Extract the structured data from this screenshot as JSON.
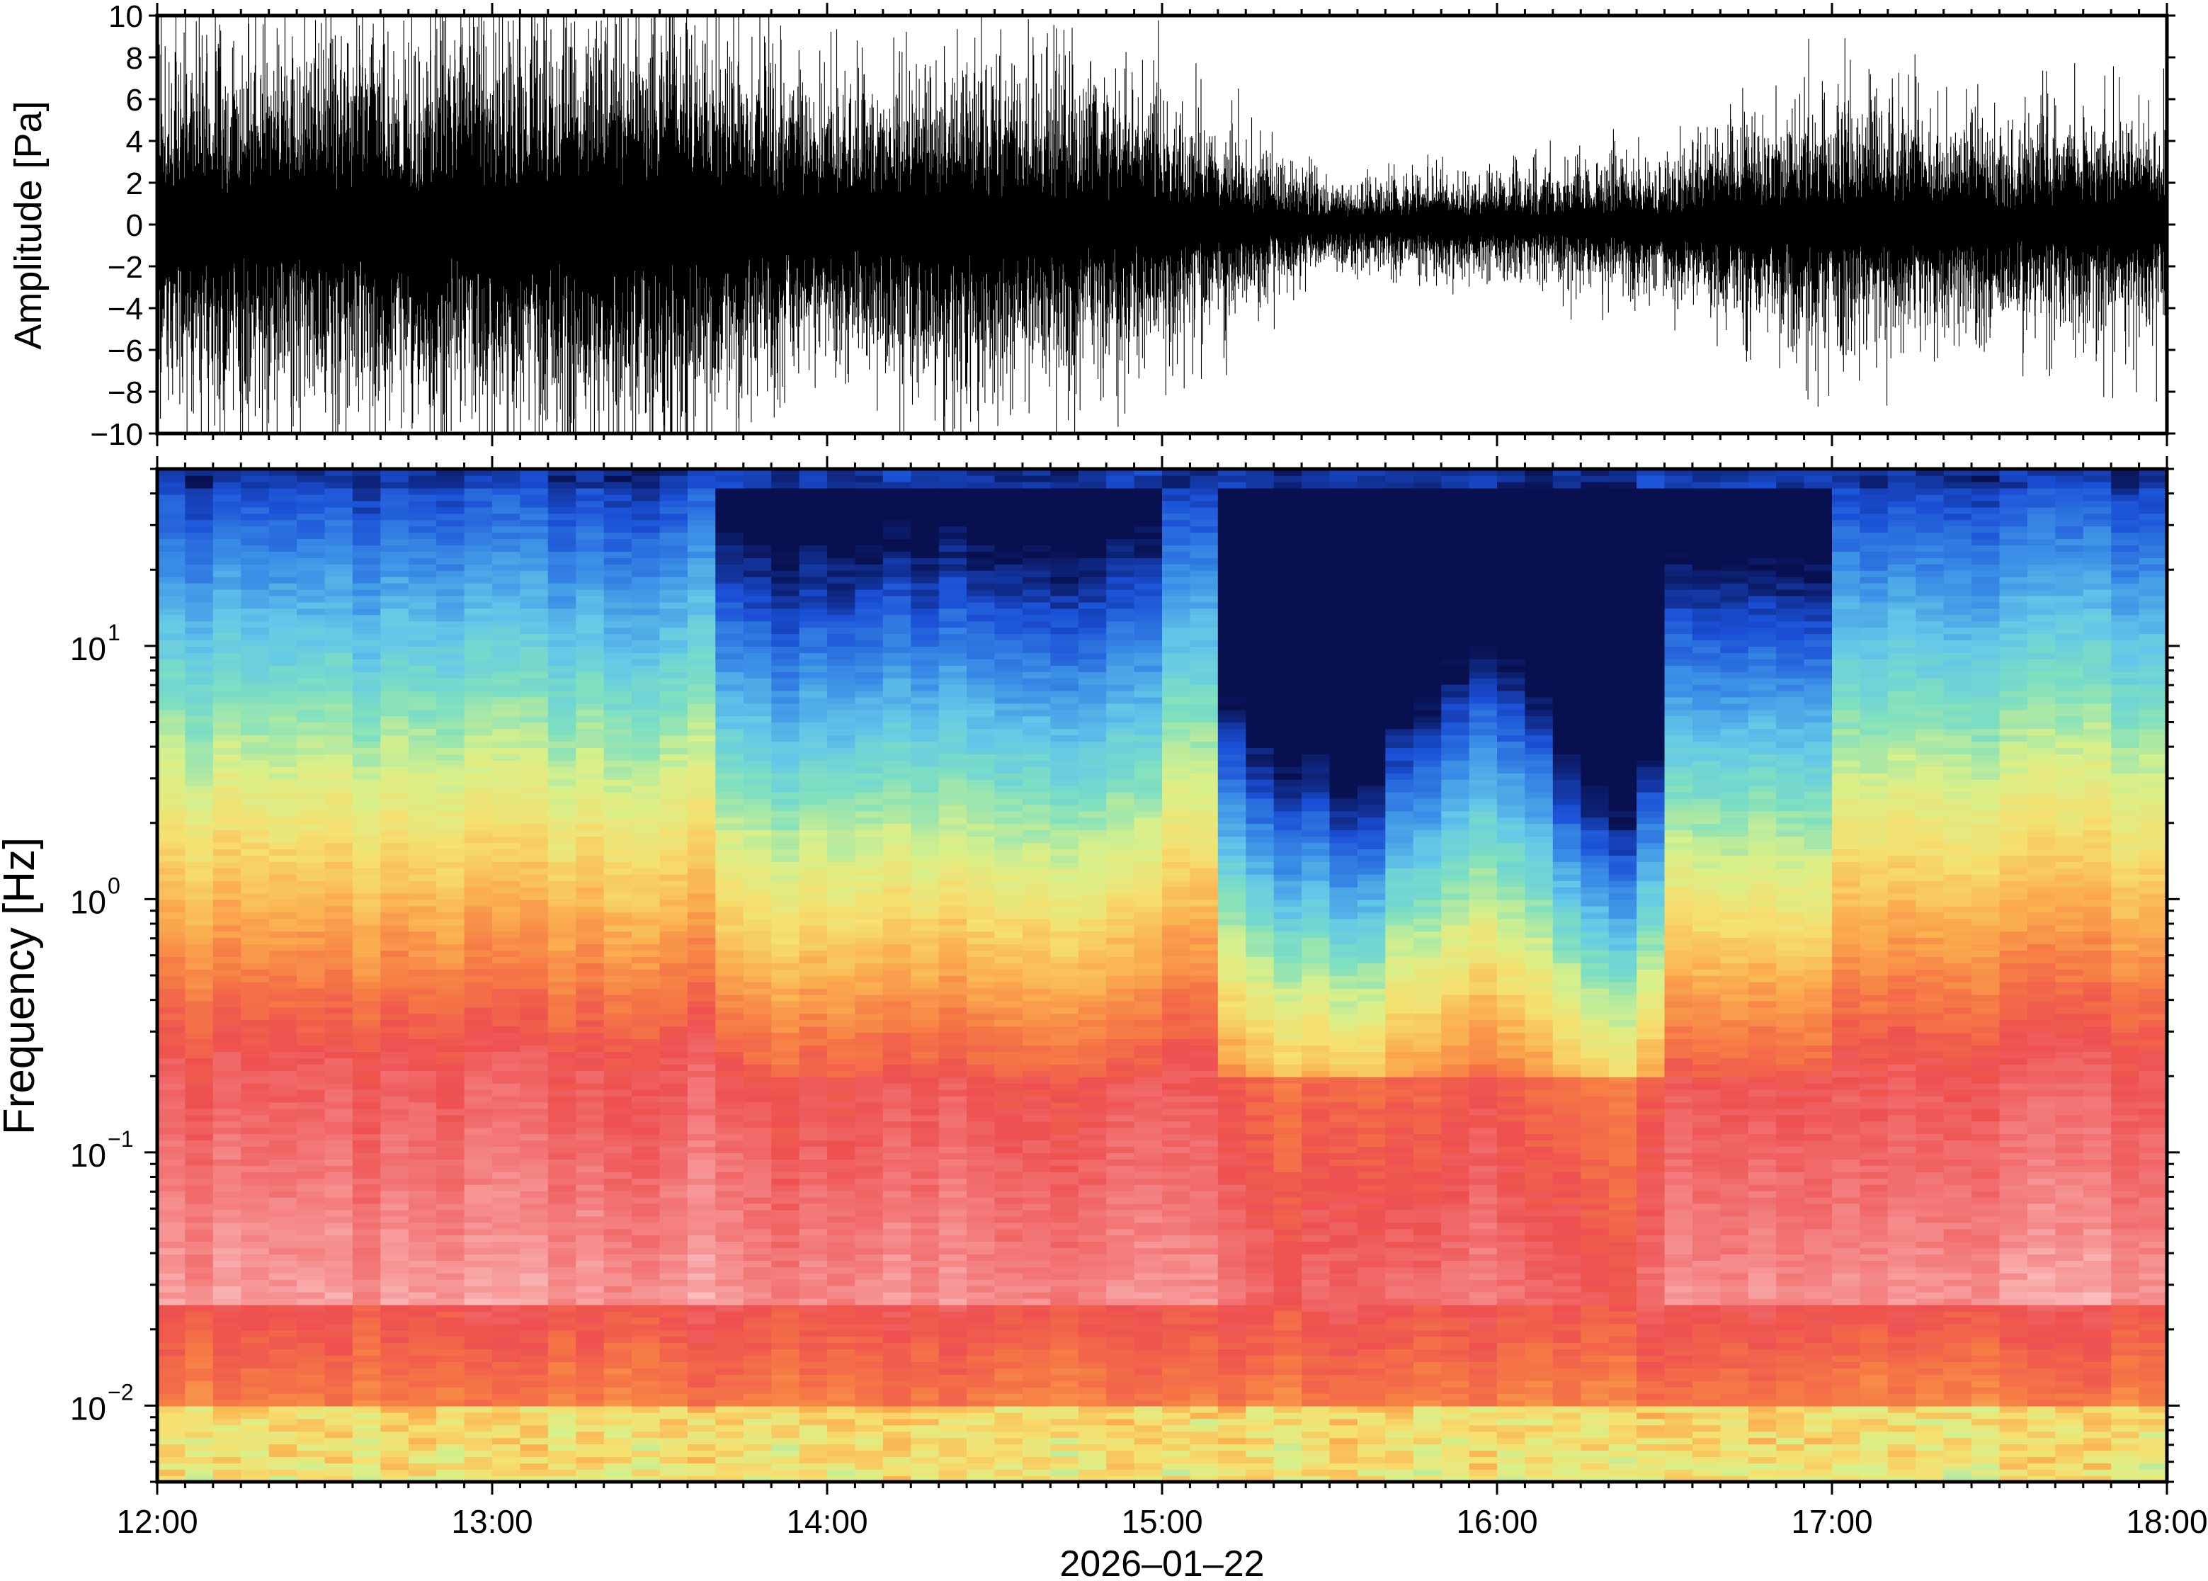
{
  "chart_data": [
    {
      "type": "line",
      "title": "",
      "xlabel": "",
      "ylabel": "Amplitude [Pa]",
      "ylim": [
        -10,
        10
      ],
      "yticks": [
        "10",
        "8",
        "6",
        "4",
        "2",
        "0",
        "−2",
        "−4",
        "−6",
        "−8",
        "−10"
      ],
      "ytick_values": [
        10,
        8,
        6,
        4,
        2,
        0,
        -2,
        -4,
        -6,
        -8,
        -10
      ],
      "x_range_hours": [
        12,
        18
      ],
      "grid": false,
      "line_color": "#000000",
      "envelope": {
        "description_hours": [
          12.0,
          12.5,
          13.0,
          13.5,
          14.0,
          14.5,
          15.0,
          15.5,
          16.0,
          16.5,
          17.0,
          17.5,
          18.0
        ],
        "typical_peak_pa": [
          5.0,
          5.5,
          6.0,
          6.5,
          4.0,
          5.0,
          3.5,
          1.2,
          1.5,
          2.0,
          3.5,
          3.0,
          3.0
        ],
        "max_spike_pa": [
          10,
          10,
          10,
          10,
          7,
          10,
          10,
          3,
          3,
          5,
          10,
          7,
          9
        ]
      }
    },
    {
      "type": "heatmap",
      "title": "",
      "xlabel": "2026‒01‒22",
      "ylabel": "Frequency [Hz]",
      "yscale": "log",
      "ylim": [
        0.005,
        50
      ],
      "ytick_values": [
        0.01,
        0.1,
        1,
        10
      ],
      "ytick_base": "10",
      "ytick_exponents": [
        "−2",
        "−1",
        "0",
        "1"
      ],
      "xtick_labels": [
        "12:00",
        "13:00",
        "14:00",
        "15:00",
        "16:00",
        "17:00",
        "18:00"
      ],
      "xtick_hours": [
        12,
        13,
        14,
        15,
        16,
        17,
        18
      ],
      "colormap": [
        "#08104f",
        "#1a4fd6",
        "#3a8de6",
        "#63c8e8",
        "#7fe0c0",
        "#d8f08a",
        "#f5e070",
        "#fbb050",
        "#f67a45",
        "#ee5050",
        "#f48080",
        "#fbc0c0"
      ],
      "colormap_note": "dark blue = low power, white-pink = high power"
    }
  ]
}
